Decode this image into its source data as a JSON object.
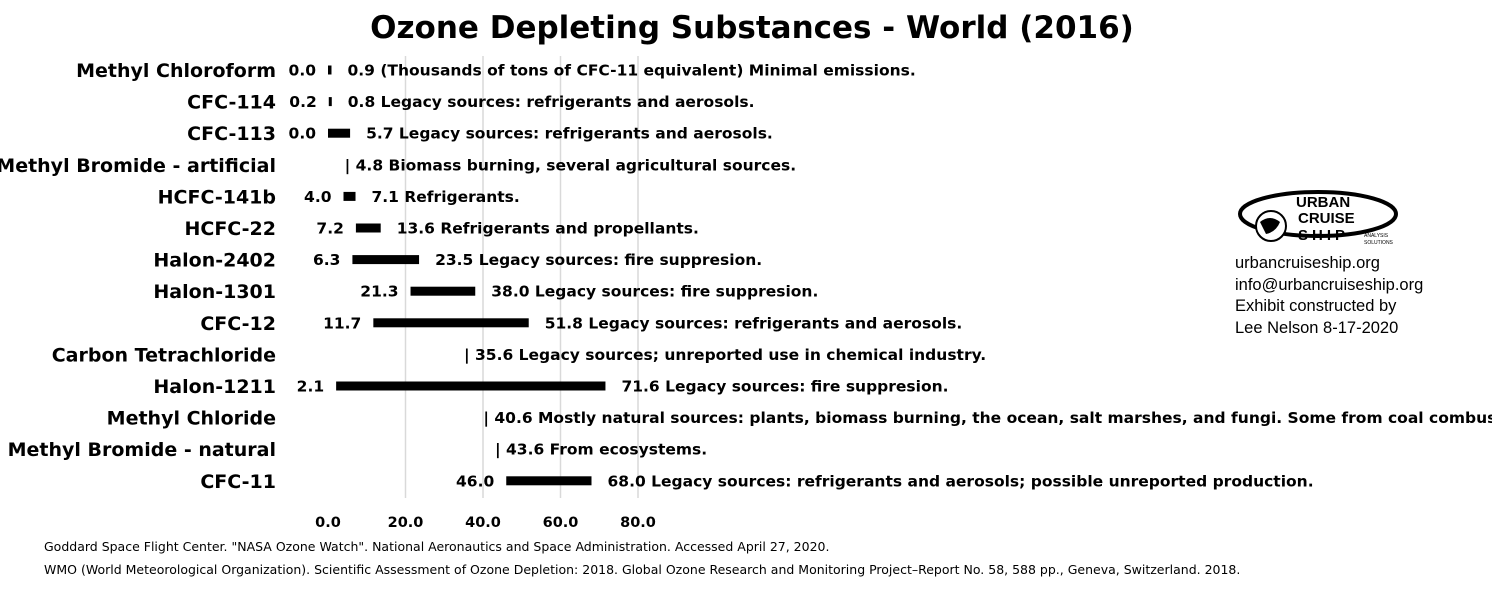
{
  "chart_data": {
    "type": "bar",
    "subtype": "floating-range",
    "title": "Ozone Depleting Substances - World (2016)",
    "xlim": [
      0,
      80
    ],
    "xticks": [
      "0.0",
      "20.0",
      "40.0",
      "60.0",
      "80.0"
    ],
    "grid": true,
    "categories": [
      "Methyl Chloroform",
      "CFC-114",
      "CFC-113",
      "Methyl Bromide - artificial",
      "HCFC-141b",
      "HCFC-22",
      "Halon-2402",
      "Halon-1301",
      "CFC-12",
      "Carbon Tetrachloride",
      "Halon-1211",
      "Methyl Chloride",
      "Methyl Bromide - natural",
      "CFC-11"
    ],
    "rows": [
      {
        "low": 0.0,
        "high": 0.9,
        "low_label": "0.0",
        "high_label": "0.9",
        "note": "(Thousands of tons of CFC-11 equivalent) Minimal emissions."
      },
      {
        "low": 0.2,
        "high": 0.8,
        "low_label": "0.2",
        "high_label": "0.8",
        "note": "Legacy sources: refrigerants and aerosols."
      },
      {
        "low": 0.0,
        "high": 5.7,
        "low_label": "0.0",
        "high_label": "5.7",
        "note": "Legacy sources: refrigerants and aerosols."
      },
      {
        "low": null,
        "high": 4.8,
        "low_label": "",
        "high_label": "| 4.8",
        "note": "Biomass burning, several agricultural sources."
      },
      {
        "low": 4.0,
        "high": 7.1,
        "low_label": "4.0",
        "high_label": "7.1",
        "note": "Refrigerants."
      },
      {
        "low": 7.2,
        "high": 13.6,
        "low_label": "7.2",
        "high_label": "13.6",
        "note": "Refrigerants and propellants."
      },
      {
        "low": 6.3,
        "high": 23.5,
        "low_label": "6.3",
        "high_label": "23.5",
        "note": "Legacy sources: fire suppresion."
      },
      {
        "low": 21.3,
        "high": 38.0,
        "low_label": "21.3",
        "high_label": "38.0",
        "note": "Legacy sources: fire suppresion."
      },
      {
        "low": 11.7,
        "high": 51.8,
        "low_label": "11.7",
        "high_label": "51.8",
        "note": "Legacy sources: refrigerants and aerosols."
      },
      {
        "low": null,
        "high": 35.6,
        "low_label": "",
        "high_label": "| 35.6",
        "note": "Legacy sources; unreported use in chemical industry."
      },
      {
        "low": 2.1,
        "high": 71.6,
        "low_label": "2.1",
        "high_label": "71.6",
        "note": "Legacy sources: fire suppresion."
      },
      {
        "low": null,
        "high": 40.6,
        "low_label": "",
        "high_label": "| 40.6",
        "note": "Mostly natural sources: plants, biomass burning, the ocean, salt marshes, and fungi. Some from coal combustion."
      },
      {
        "low": null,
        "high": 43.6,
        "low_label": "",
        "high_label": "| 43.6",
        "note": "From ecosystems."
      },
      {
        "low": 46.0,
        "high": 68.0,
        "low_label": "46.0",
        "high_label": "68.0",
        "note": "Legacy sources: refrigerants and aerosols; possible unreported production."
      }
    ]
  },
  "sources": [
    "Goddard Space Flight Center. \"NASA Ozone Watch\". National Aeronautics and Space Administration. Accessed April 27, 2020.",
    "WMO (World Meteorological Organization). Scientific Assessment of Ozone Depletion: 2018. Global Ozone Research and Monitoring Project–Report No. 58, 588 pp., Geneva, Switzerland. 2018."
  ],
  "credit": {
    "logo_text": [
      "URBAN",
      "CRUISE",
      "SHIP",
      "ANALYSIS",
      "SOLUTIONS"
    ],
    "lines": [
      "urbancruiseship.org",
      "info@urbancruiseship.org",
      "Exhibit constructed by",
      "Lee Nelson 8-17-2020"
    ]
  },
  "colors": {
    "bar": "#000000",
    "grid": "#d9d9d9",
    "background": "#ffffff"
  }
}
